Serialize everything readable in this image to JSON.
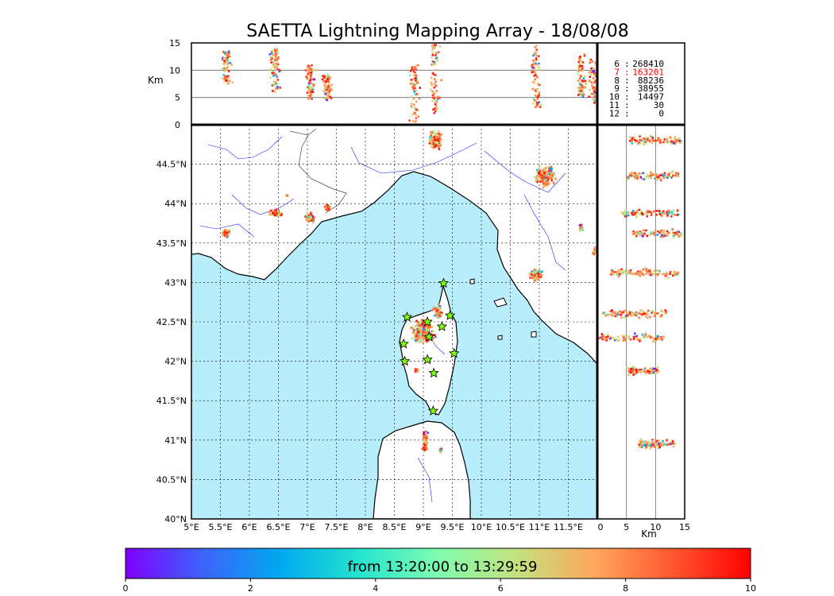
{
  "chart_data": {
    "type": "scatter",
    "title": "SAETTA Lightning Mapping Array - 18/08/08",
    "map": {
      "xlim": [
        5,
        12
      ],
      "ylim": [
        40,
        45
      ],
      "x_tick_values": [
        5,
        5.5,
        6,
        6.5,
        7,
        7.5,
        8,
        8.5,
        9,
        9.5,
        10,
        10.5,
        11,
        11.5
      ],
      "x_tick_labels": [
        "5°E",
        "5.5°E",
        "6°E",
        "6.5°E",
        "7°E",
        "7.5°E",
        "8°E",
        "8.5°E",
        "9°E",
        "9.5°E",
        "10°E",
        "10.5°E",
        "11°E",
        "11.5°E"
      ],
      "y_tick_values": [
        40,
        40.5,
        41,
        41.5,
        42,
        42.5,
        43,
        43.5,
        44,
        44.5
      ],
      "y_tick_labels": [
        "40°N",
        "40.5°N",
        "41°N",
        "41.5°N",
        "42°N",
        "42.5°N",
        "43°N",
        "43.5°N",
        "44°N",
        "44.5°N"
      ],
      "grid": true,
      "sea_color": "#b8eefc",
      "land_color": "#ffffff",
      "stations": [
        {
          "lon": 9.35,
          "lat": 42.99
        },
        {
          "lon": 9.46,
          "lat": 42.58
        },
        {
          "lon": 8.72,
          "lat": 42.56
        },
        {
          "lon": 9.07,
          "lat": 42.5
        },
        {
          "lon": 9.32,
          "lat": 42.44
        },
        {
          "lon": 9.1,
          "lat": 42.31
        },
        {
          "lon": 8.66,
          "lat": 42.22
        },
        {
          "lon": 9.53,
          "lat": 42.1
        },
        {
          "lon": 8.68,
          "lat": 42.0
        },
        {
          "lon": 9.07,
          "lat": 42.02
        },
        {
          "lon": 9.18,
          "lat": 41.85
        },
        {
          "lon": 9.17,
          "lat": 41.37
        }
      ],
      "clusters": [
        {
          "lon": 5.6,
          "lat": 43.62,
          "rlon": 0.08,
          "rlat": 0.07,
          "n": 60
        },
        {
          "lon": 6.45,
          "lat": 43.88,
          "rlon": 0.12,
          "rlat": 0.05,
          "n": 60
        },
        {
          "lon": 6.65,
          "lat": 44.1,
          "rlon": 0.03,
          "rlat": 0.02,
          "n": 6
        },
        {
          "lon": 7.05,
          "lat": 43.82,
          "rlon": 0.1,
          "rlat": 0.08,
          "n": 80
        },
        {
          "lon": 7.35,
          "lat": 43.95,
          "rlon": 0.07,
          "rlat": 0.06,
          "n": 40
        },
        {
          "lon": 9.2,
          "lat": 44.8,
          "rlon": 0.15,
          "rlat": 0.15,
          "n": 130
        },
        {
          "lon": 11.1,
          "lat": 44.35,
          "rlon": 0.22,
          "rlat": 0.16,
          "n": 160
        },
        {
          "lon": 10.95,
          "lat": 43.1,
          "rlon": 0.16,
          "rlat": 0.09,
          "n": 80
        },
        {
          "lon": 9.0,
          "lat": 42.38,
          "rlon": 0.25,
          "rlat": 0.18,
          "n": 260
        },
        {
          "lon": 9.25,
          "lat": 42.62,
          "rlon": 0.1,
          "rlat": 0.12,
          "n": 60
        },
        {
          "lon": 8.88,
          "lat": 41.88,
          "rlon": 0.05,
          "rlat": 0.04,
          "n": 20
        },
        {
          "lon": 9.03,
          "lat": 40.98,
          "rlon": 0.06,
          "rlat": 0.17,
          "n": 80
        },
        {
          "lon": 9.3,
          "lat": 40.88,
          "rlon": 0.03,
          "rlat": 0.06,
          "n": 14
        },
        {
          "lon": 11.72,
          "lat": 43.7,
          "rlon": 0.04,
          "rlat": 0.06,
          "n": 14
        },
        {
          "lon": 11.95,
          "lat": 43.4,
          "rlon": 0.05,
          "rlat": 0.08,
          "n": 14
        }
      ]
    },
    "top_panel": {
      "ylabel": "Km",
      "ylim": [
        0,
        15
      ],
      "y_tick_values": [
        0,
        5,
        10,
        15
      ],
      "y_tick_labels": [
        "0",
        "5",
        "10",
        "15"
      ],
      "xlim": [
        5,
        12
      ],
      "columns": [
        {
          "lon": 5.6,
          "alt_lo": 7.5,
          "alt_hi": 13.5
        },
        {
          "lon": 6.45,
          "alt_lo": 6.0,
          "alt_hi": 14.0
        },
        {
          "lon": 7.05,
          "alt_lo": 4.5,
          "alt_hi": 11.0
        },
        {
          "lon": 7.35,
          "alt_lo": 4.5,
          "alt_hi": 9.5
        },
        {
          "lon": 8.85,
          "alt_lo": 0.0,
          "alt_hi": 11.0
        },
        {
          "lon": 9.2,
          "alt_lo": 2.0,
          "alt_hi": 15.0
        },
        {
          "lon": 10.95,
          "alt_lo": 3.0,
          "alt_hi": 15.0
        },
        {
          "lon": 11.72,
          "alt_lo": 5.0,
          "alt_hi": 13.0
        },
        {
          "lon": 11.95,
          "alt_lo": 4.0,
          "alt_hi": 12.0
        }
      ]
    },
    "right_panel": {
      "xlabel": "Km",
      "xlim": [
        0,
        15
      ],
      "x_tick_values": [
        0,
        5,
        10,
        15
      ],
      "x_tick_labels": [
        "0",
        "5",
        "10",
        "15"
      ],
      "ylim": [
        40,
        45
      ],
      "rows": [
        {
          "lat": 44.8,
          "alt_lo": 5.5,
          "alt_hi": 14.5
        },
        {
          "lat": 44.35,
          "alt_lo": 5.0,
          "alt_hi": 14.0
        },
        {
          "lat": 43.88,
          "alt_lo": 4.0,
          "alt_hi": 14.0
        },
        {
          "lat": 43.62,
          "alt_lo": 6.0,
          "alt_hi": 14.5
        },
        {
          "lat": 43.12,
          "alt_lo": 2.0,
          "alt_hi": 14.0
        },
        {
          "lat": 42.6,
          "alt_lo": 1.0,
          "alt_hi": 12.0
        },
        {
          "lat": 42.3,
          "alt_lo": 0.0,
          "alt_hi": 11.5
        },
        {
          "lat": 41.88,
          "alt_lo": 5.0,
          "alt_hi": 10.5
        },
        {
          "lat": 40.95,
          "alt_lo": 7.0,
          "alt_hi": 13.5
        }
      ]
    },
    "station_counts": [
      {
        "stations": "6",
        "count": "268410",
        "highlight": false
      },
      {
        "stations": "7",
        "count": "163201",
        "highlight": true
      },
      {
        "stations": "8",
        "count": "88236",
        "highlight": false
      },
      {
        "stations": "9",
        "count": "38955",
        "highlight": false
      },
      {
        "stations": "10",
        "count": "14497",
        "highlight": false
      },
      {
        "stations": "11",
        "count": "30",
        "highlight": false
      },
      {
        "stations": "12",
        "count": "0",
        "highlight": false
      }
    ],
    "colorbar": {
      "label": "from 13:20:00 to 13:29:59",
      "range": [
        0,
        10
      ],
      "tick_values": [
        0,
        2,
        4,
        6,
        8,
        10
      ],
      "tick_labels": [
        "0",
        "2",
        "4",
        "6",
        "8",
        "10"
      ],
      "colormap": [
        "#7f00ff",
        "#3c64fb",
        "#00aaee",
        "#26e4cf",
        "#7ffdaf",
        "#c3e27e",
        "#ffa75e",
        "#ff5730",
        "#ff0000"
      ]
    }
  }
}
